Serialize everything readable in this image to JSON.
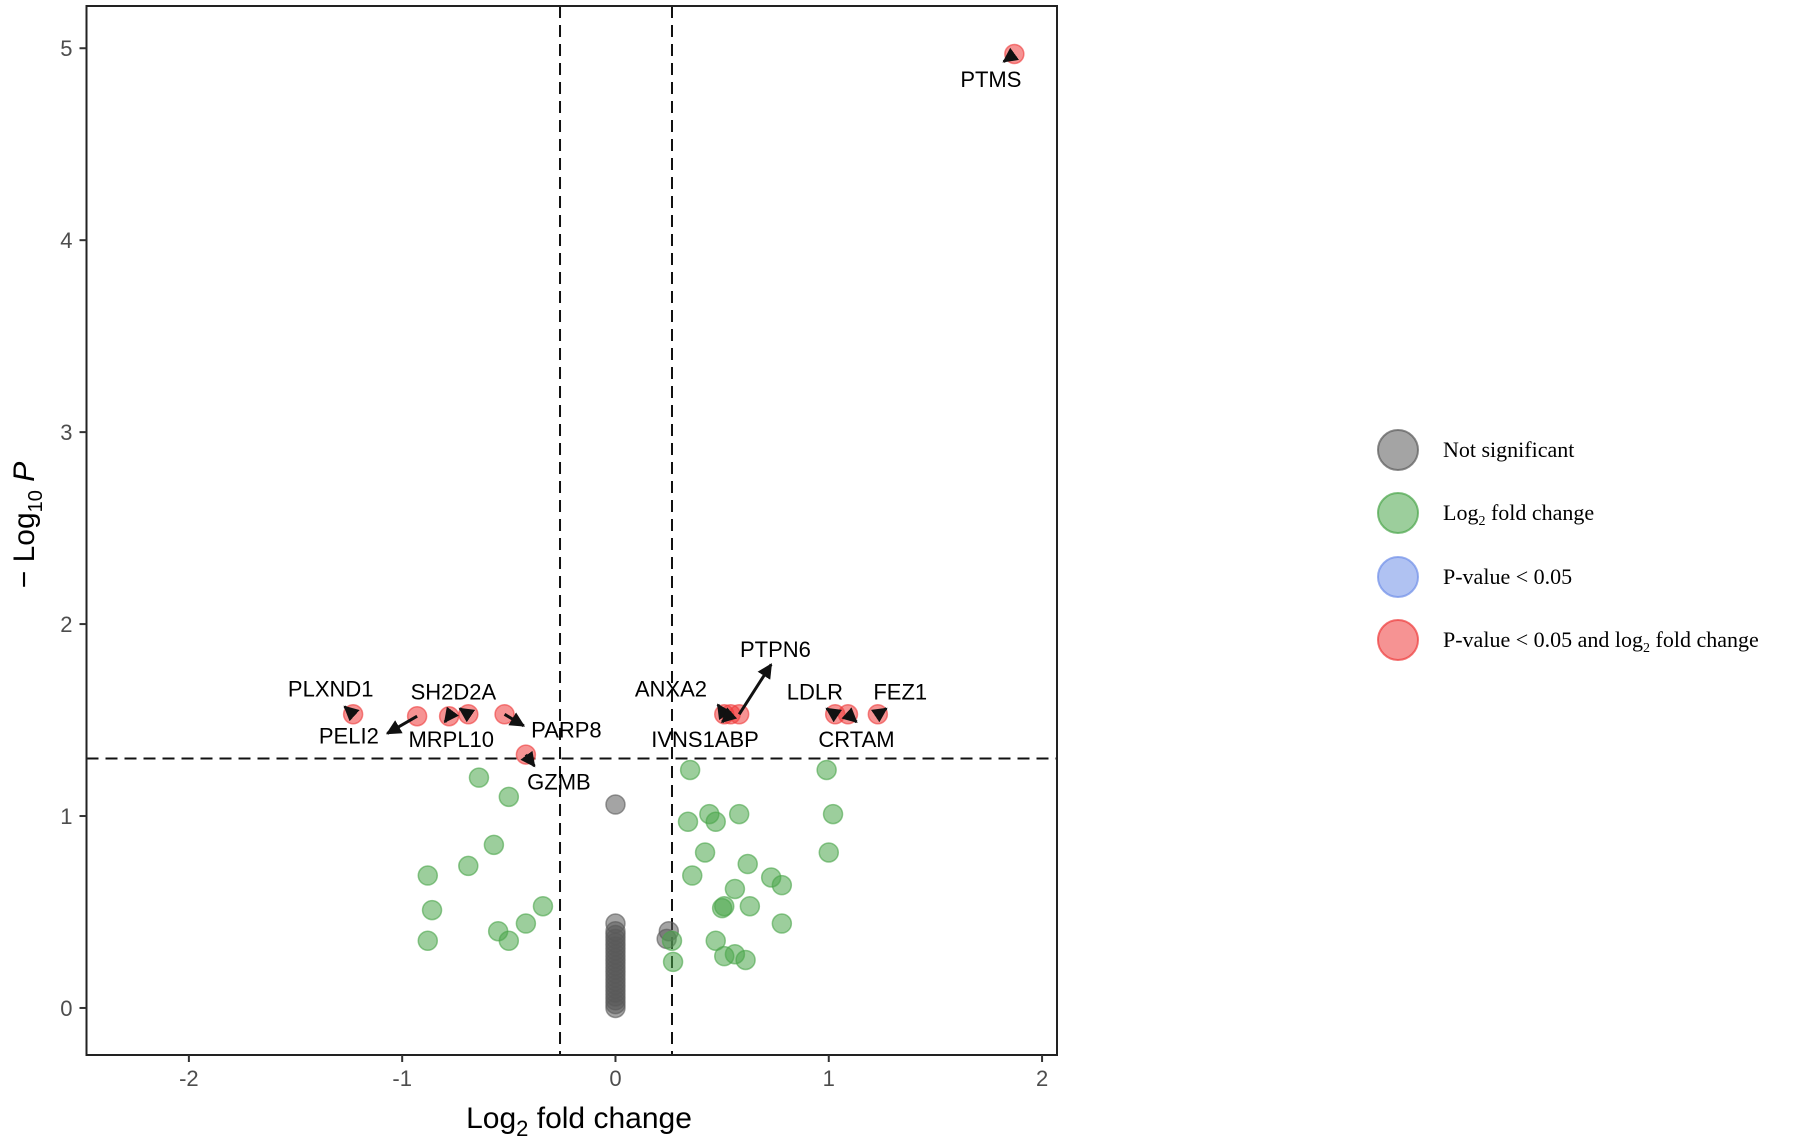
{
  "chart_data": {
    "type": "scatter",
    "title": "",
    "xlabel": "Log2 fold change",
    "xlabel_main": "Log",
    "xlabel_sub": "2",
    "xlabel_rest": "fold change",
    "ylabel_prefix": "− Log",
    "ylabel_sub": "10",
    "ylabel_italic": "P",
    "xlim": [
      -2.48,
      2.07
    ],
    "ylim": [
      -0.245,
      5.22
    ],
    "x_ticks": [
      -2,
      -1,
      0,
      1,
      2
    ],
    "x_tick_labels": [
      "-2",
      "-1",
      "0",
      "1",
      "2"
    ],
    "y_ticks": [
      0,
      1,
      2,
      3,
      4,
      5
    ],
    "y_tick_labels": [
      "0",
      "1",
      "2",
      "3",
      "4",
      "5"
    ],
    "grid": false,
    "thresholds": {
      "fc_low": -0.26,
      "fc_high": 0.265,
      "p_line": 1.3
    },
    "colors": {
      "ns": "#5a5a5a",
      "fc": "#4aa54a",
      "p": "#6f8fe8",
      "both": "#ee3b3b"
    },
    "legend": {
      "placement": "right",
      "items": [
        {
          "key": "ns",
          "label": "Not significant"
        },
        {
          "key": "fc",
          "label": "Log",
          "sub": "2",
          "rest": " fold change"
        },
        {
          "key": "p",
          "label": "P-value < 0.05"
        },
        {
          "key": "both",
          "label": "P-value < 0.05 and log",
          "sub": "2",
          "rest": " fold change"
        }
      ]
    },
    "series": [
      {
        "name": "Not significant",
        "key": "ns",
        "points": [
          [
            0,
            1.06
          ],
          [
            0,
            0.44
          ],
          [
            0,
            0.4
          ],
          [
            0,
            0.38
          ],
          [
            0,
            0.36
          ],
          [
            0,
            0.34
          ],
          [
            0,
            0.32
          ],
          [
            0,
            0.3
          ],
          [
            0,
            0.28
          ],
          [
            0,
            0.26
          ],
          [
            0,
            0.24
          ],
          [
            0,
            0.22
          ],
          [
            0,
            0.2
          ],
          [
            0,
            0.18
          ],
          [
            0,
            0.16
          ],
          [
            0,
            0.14
          ],
          [
            0,
            0.12
          ],
          [
            0,
            0.1
          ],
          [
            0,
            0.08
          ],
          [
            0,
            0.06
          ],
          [
            0,
            0.04
          ],
          [
            0,
            0.02
          ],
          [
            0,
            0.0
          ],
          [
            0.25,
            0.4
          ],
          [
            0.24,
            0.36
          ]
        ]
      },
      {
        "name": "Log2 fold change",
        "key": "fc",
        "points": [
          [
            -0.64,
            1.2
          ],
          [
            -0.5,
            1.1
          ],
          [
            -0.57,
            0.85
          ],
          [
            -0.69,
            0.74
          ],
          [
            -0.88,
            0.69
          ],
          [
            -0.86,
            0.51
          ],
          [
            -0.88,
            0.35
          ],
          [
            -0.55,
            0.4
          ],
          [
            -0.5,
            0.35
          ],
          [
            -0.42,
            0.44
          ],
          [
            -0.34,
            0.53
          ],
          [
            0.35,
            1.24
          ],
          [
            0.44,
            1.01
          ],
          [
            0.34,
            0.97
          ],
          [
            0.47,
            0.97
          ],
          [
            0.58,
            1.01
          ],
          [
            0.42,
            0.81
          ],
          [
            0.36,
            0.69
          ],
          [
            0.62,
            0.75
          ],
          [
            0.73,
            0.68
          ],
          [
            0.78,
            0.64
          ],
          [
            0.56,
            0.62
          ],
          [
            0.5,
            0.52
          ],
          [
            0.51,
            0.53
          ],
          [
            0.63,
            0.53
          ],
          [
            0.78,
            0.44
          ],
          [
            0.47,
            0.35
          ],
          [
            0.51,
            0.27
          ],
          [
            0.56,
            0.28
          ],
          [
            0.61,
            0.25
          ],
          [
            0.265,
            0.35
          ],
          [
            0.27,
            0.24
          ],
          [
            0.99,
            1.24
          ],
          [
            1.02,
            1.01
          ],
          [
            1.0,
            0.81
          ]
        ]
      },
      {
        "name": "P-value < 0.05",
        "key": "p",
        "points": []
      },
      {
        "name": "P-value < 0.05 and log2 fold change",
        "key": "both",
        "points": [
          [
            1.87,
            4.97
          ],
          [
            -1.23,
            1.53
          ],
          [
            -0.93,
            1.52
          ],
          [
            -0.78,
            1.52
          ],
          [
            -0.69,
            1.53
          ],
          [
            -0.52,
            1.53
          ],
          [
            -0.42,
            1.32
          ],
          [
            0.51,
            1.53
          ],
          [
            0.54,
            1.53
          ],
          [
            0.58,
            1.53
          ],
          [
            1.03,
            1.53
          ],
          [
            1.09,
            1.53
          ],
          [
            1.23,
            1.53
          ]
        ]
      }
    ],
    "annotations": [
      {
        "gene": "PTMS",
        "point": [
          1.87,
          4.97
        ],
        "label_at": [
          1.76,
          4.84
        ],
        "arrow_to": [
          1.82,
          4.93
        ]
      },
      {
        "gene": "PLXND1",
        "point": [
          -1.23,
          1.53
        ],
        "label_at": [
          -1.335,
          1.665
        ],
        "arrow_to": [
          -1.27,
          1.57
        ]
      },
      {
        "gene": "PELI2",
        "point": [
          -0.93,
          1.52
        ],
        "label_at": [
          -1.25,
          1.42
        ],
        "arrow_to": [
          -1.07,
          1.43
        ]
      },
      {
        "gene": "MRPL10",
        "point": [
          -0.78,
          1.52
        ],
        "label_at": [
          -0.77,
          1.4
        ],
        "arrow_to": [
          -0.8,
          1.49
        ]
      },
      {
        "gene": "SH2D2A",
        "point": [
          -0.69,
          1.53
        ],
        "label_at": [
          -0.76,
          1.65
        ],
        "arrow_to": [
          -0.73,
          1.56
        ]
      },
      {
        "gene": "PARP8",
        "point": [
          -0.52,
          1.53
        ],
        "label_at": [
          -0.23,
          1.45
        ],
        "arrow_to": [
          -0.43,
          1.47
        ]
      },
      {
        "gene": "GZMB",
        "point": [
          -0.42,
          1.32
        ],
        "label_at": [
          -0.265,
          1.18
        ],
        "arrow_to": [
          -0.38,
          1.26
        ]
      },
      {
        "gene": "ANXA2",
        "point": [
          0.51,
          1.53
        ],
        "label_at": [
          0.26,
          1.665
        ],
        "arrow_to": [
          0.48,
          1.58
        ]
      },
      {
        "gene": "IVNS1ABP",
        "point": [
          0.54,
          1.53
        ],
        "label_at": [
          0.42,
          1.4
        ],
        "arrow_to": [
          0.5,
          1.49
        ]
      },
      {
        "gene": "PTPN6",
        "point": [
          0.58,
          1.53
        ],
        "label_at": [
          0.75,
          1.87
        ],
        "arrow_to": [
          0.73,
          1.79
        ]
      },
      {
        "gene": "LDLR",
        "point": [
          1.03,
          1.53
        ],
        "label_at": [
          0.935,
          1.65
        ],
        "arrow_to": [
          0.99,
          1.56
        ]
      },
      {
        "gene": "CRTAM",
        "point": [
          1.09,
          1.53
        ],
        "label_at": [
          1.13,
          1.4
        ],
        "arrow_to": [
          1.13,
          1.49
        ]
      },
      {
        "gene": "FEZ1",
        "point": [
          1.23,
          1.53
        ],
        "label_at": [
          1.335,
          1.65
        ],
        "arrow_to": [
          1.27,
          1.56
        ]
      }
    ]
  }
}
